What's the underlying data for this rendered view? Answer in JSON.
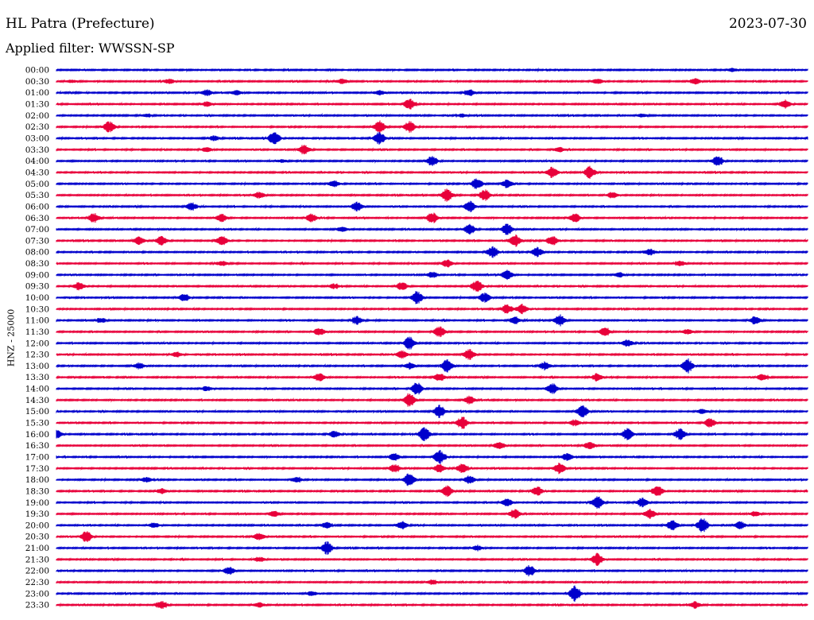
{
  "header": {
    "station": "HL Patra (Prefecture)",
    "date": "2023-07-30",
    "filter": "Applied filter: WWSSN-SP"
  },
  "chart_data": {
    "type": "line",
    "ylabel": "HNZ - 25000",
    "tick_labels": [
      "00:00",
      "00:30",
      "01:00",
      "01:30",
      "02:00",
      "02:30",
      "03:00",
      "03:30",
      "04:00",
      "04:30",
      "05:00",
      "05:30",
      "06:00",
      "06:30",
      "07:00",
      "07:30",
      "08:00",
      "08:30",
      "09:00",
      "09:30",
      "10:00",
      "10:30",
      "11:00",
      "11:30",
      "12:00",
      "12:30",
      "13:00",
      "13:30",
      "14:00",
      "14:30",
      "15:00",
      "15:30",
      "16:00",
      "16:30",
      "17:00",
      "17:30",
      "18:00",
      "18:30",
      "19:00",
      "19:30",
      "20:00",
      "20:30",
      "21:00",
      "21:30",
      "22:00",
      "22:30",
      "23:00",
      "23:30"
    ],
    "colors": [
      "#0000cc",
      "#e8003a"
    ],
    "trace_minutes": 30,
    "bursts": [
      [
        [
          0.9,
          2
        ]
      ],
      [
        [
          0.15,
          3
        ],
        [
          0.38,
          3
        ],
        [
          0.72,
          3
        ],
        [
          0.85,
          4
        ],
        [
          0.02,
          2
        ]
      ],
      [
        [
          0.2,
          4
        ],
        [
          0.43,
          3
        ],
        [
          0.55,
          4
        ],
        [
          0.24,
          3
        ]
      ],
      [
        [
          0.47,
          7
        ],
        [
          0.97,
          5
        ],
        [
          0.2,
          3
        ]
      ],
      [
        [
          0.12,
          2
        ],
        [
          0.54,
          2
        ],
        [
          0.78,
          2
        ]
      ],
      [
        [
          0.07,
          7
        ],
        [
          0.43,
          8
        ],
        [
          0.47,
          7
        ]
      ],
      [
        [
          0.29,
          9
        ],
        [
          0.43,
          8
        ],
        [
          0.21,
          3
        ]
      ],
      [
        [
          0.33,
          6
        ],
        [
          0.2,
          3
        ],
        [
          0.67,
          3
        ]
      ],
      [
        [
          0.5,
          6
        ],
        [
          0.88,
          6
        ],
        [
          0.3,
          2
        ]
      ],
      [
        [
          0.66,
          7
        ],
        [
          0.71,
          8
        ]
      ],
      [
        [
          0.56,
          7
        ],
        [
          0.37,
          4
        ],
        [
          0.6,
          5
        ]
      ],
      [
        [
          0.52,
          8
        ],
        [
          0.57,
          7
        ],
        [
          0.27,
          4
        ],
        [
          0.74,
          4
        ]
      ],
      [
        [
          0.18,
          5
        ],
        [
          0.4,
          6
        ],
        [
          0.55,
          7
        ]
      ],
      [
        [
          0.05,
          6
        ],
        [
          0.22,
          5
        ],
        [
          0.34,
          5
        ],
        [
          0.5,
          7
        ],
        [
          0.69,
          6
        ]
      ],
      [
        [
          0.55,
          7
        ],
        [
          0.6,
          7
        ],
        [
          0.38,
          3
        ]
      ],
      [
        [
          0.11,
          5
        ],
        [
          0.14,
          6
        ],
        [
          0.22,
          7
        ],
        [
          0.61,
          8
        ],
        [
          0.66,
          6
        ]
      ],
      [
        [
          0.58,
          7
        ],
        [
          0.64,
          6
        ],
        [
          0.79,
          4
        ]
      ],
      [
        [
          0.52,
          5
        ],
        [
          0.22,
          3
        ],
        [
          0.83,
          3
        ]
      ],
      [
        [
          0.5,
          4
        ],
        [
          0.6,
          6
        ],
        [
          0.75,
          3
        ]
      ],
      [
        [
          0.03,
          5
        ],
        [
          0.46,
          5
        ],
        [
          0.56,
          7
        ],
        [
          0.37,
          3
        ]
      ],
      [
        [
          0.17,
          5
        ],
        [
          0.48,
          8
        ],
        [
          0.57,
          6
        ]
      ],
      [
        [
          0.6,
          6
        ],
        [
          0.62,
          6
        ]
      ],
      [
        [
          0.06,
          3
        ],
        [
          0.4,
          5
        ],
        [
          0.61,
          5
        ],
        [
          0.67,
          7
        ],
        [
          0.93,
          5
        ]
      ],
      [
        [
          0.35,
          5
        ],
        [
          0.51,
          7
        ],
        [
          0.73,
          5
        ],
        [
          0.84,
          3
        ]
      ],
      [
        [
          0.47,
          8
        ],
        [
          0.76,
          4
        ]
      ],
      [
        [
          0.16,
          3
        ],
        [
          0.46,
          5
        ],
        [
          0.55,
          7
        ]
      ],
      [
        [
          0.11,
          4
        ],
        [
          0.47,
          4
        ],
        [
          0.52,
          8
        ],
        [
          0.65,
          5
        ],
        [
          0.84,
          9
        ]
      ],
      [
        [
          0.35,
          5
        ],
        [
          0.51,
          5
        ],
        [
          0.72,
          5
        ],
        [
          0.94,
          4
        ]
      ],
      [
        [
          0.2,
          3
        ],
        [
          0.48,
          8
        ],
        [
          0.66,
          7
        ]
      ],
      [
        [
          0.47,
          9
        ],
        [
          0.55,
          5
        ]
      ],
      [
        [
          0.51,
          8
        ],
        [
          0.7,
          8
        ],
        [
          0.86,
          3
        ]
      ],
      [
        [
          0.54,
          8
        ],
        [
          0.69,
          4
        ],
        [
          0.87,
          6
        ]
      ],
      [
        [
          0.0,
          6
        ],
        [
          0.37,
          4
        ],
        [
          0.49,
          9
        ],
        [
          0.76,
          7
        ],
        [
          0.83,
          7
        ]
      ],
      [
        [
          0.59,
          5
        ],
        [
          0.71,
          5
        ]
      ],
      [
        [
          0.45,
          5
        ],
        [
          0.51,
          9
        ],
        [
          0.68,
          5
        ]
      ],
      [
        [
          0.45,
          5
        ],
        [
          0.51,
          5
        ],
        [
          0.54,
          6
        ],
        [
          0.67,
          7
        ]
      ],
      [
        [
          0.47,
          9
        ],
        [
          0.55,
          5
        ],
        [
          0.12,
          3
        ],
        [
          0.32,
          3
        ]
      ],
      [
        [
          0.52,
          7
        ],
        [
          0.64,
          6
        ],
        [
          0.8,
          7
        ],
        [
          0.14,
          3
        ]
      ],
      [
        [
          0.6,
          5
        ],
        [
          0.72,
          8
        ],
        [
          0.78,
          6
        ]
      ],
      [
        [
          0.29,
          4
        ],
        [
          0.61,
          6
        ],
        [
          0.79,
          6
        ],
        [
          0.93,
          3
        ]
      ],
      [
        [
          0.13,
          3
        ],
        [
          0.36,
          4
        ],
        [
          0.46,
          5
        ],
        [
          0.82,
          7
        ],
        [
          0.86,
          9
        ],
        [
          0.91,
          5
        ]
      ],
      [
        [
          0.04,
          7
        ],
        [
          0.27,
          5
        ]
      ],
      [
        [
          0.36,
          8
        ],
        [
          0.56,
          3
        ]
      ],
      [
        [
          0.72,
          8
        ],
        [
          0.27,
          3
        ]
      ],
      [
        [
          0.23,
          5
        ],
        [
          0.63,
          7
        ]
      ],
      [
        [
          0.5,
          3
        ]
      ],
      [
        [
          0.69,
          10
        ],
        [
          0.34,
          3
        ]
      ],
      [
        [
          0.14,
          5
        ],
        [
          0.27,
          3
        ],
        [
          0.85,
          4
        ]
      ]
    ]
  }
}
